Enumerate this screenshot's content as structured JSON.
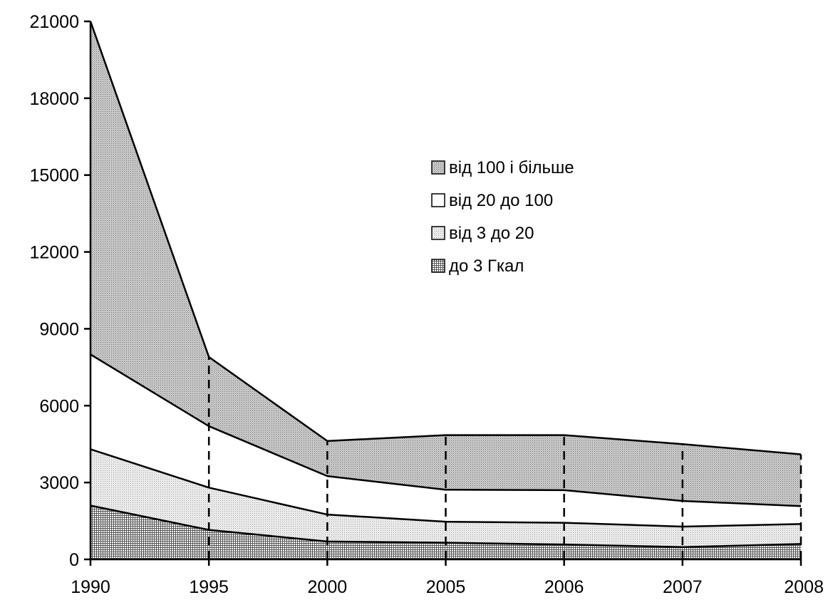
{
  "chart_data": {
    "type": "area",
    "stacked": true,
    "title": "",
    "xlabel": "",
    "ylabel": "",
    "x": [
      "1990",
      "1995",
      "2000",
      "2005",
      "2006",
      "2007",
      "2008"
    ],
    "ylim": [
      0,
      21000
    ],
    "yticks": [
      "0",
      "3000",
      "6000",
      "9000",
      "12000",
      "15000",
      "18000",
      "21000"
    ],
    "legend_position": "center-right",
    "grid": false,
    "vertical_dashed_lines": true,
    "series": [
      {
        "name": "до 3 Гкал",
        "values": [
          2100,
          1150,
          700,
          650,
          580,
          480,
          600
        ],
        "pattern": "crosshatch"
      },
      {
        "name": "від 3 до 20",
        "values": [
          2200,
          1650,
          1050,
          820,
          850,
          800,
          780
        ],
        "pattern": "light-dots"
      },
      {
        "name": "від 20 до 100",
        "values": [
          3700,
          2400,
          1500,
          1250,
          1270,
          1000,
          700
        ],
        "pattern": "white"
      },
      {
        "name": "від 100 і більше",
        "values": [
          13000,
          2700,
          1370,
          2130,
          2150,
          2220,
          2020
        ],
        "pattern": "dark-dots"
      }
    ],
    "legend_order": [
      "від 100 і більше",
      "від 20 до 100",
      "від 3 до 20",
      "до 3 Гкал"
    ]
  }
}
